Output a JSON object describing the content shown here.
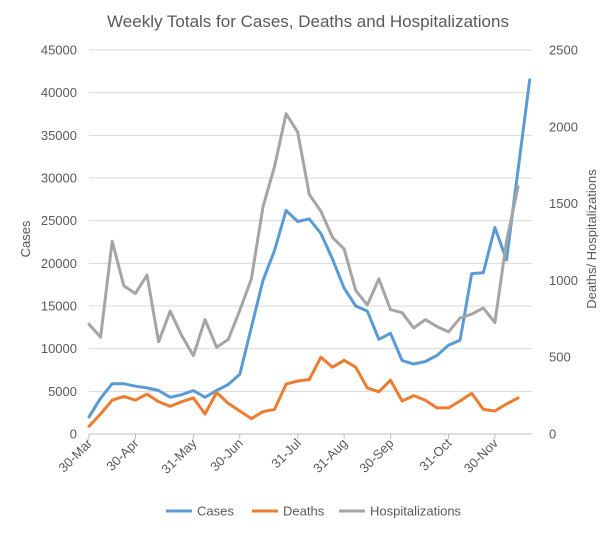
{
  "chart_data": {
    "type": "line",
    "title": "Weekly Totals for Cases, Deaths and Hospitalizations",
    "ylabel": "Cases",
    "y2label": "Deaths/ Hospitalizations",
    "xlabel": "",
    "ylim": [
      0,
      45000
    ],
    "y2lim": [
      0,
      2500
    ],
    "y_ticks": [
      0,
      5000,
      10000,
      15000,
      20000,
      25000,
      30000,
      35000,
      40000,
      45000
    ],
    "y2_ticks": [
      0,
      500,
      1000,
      1500,
      2000,
      2500
    ],
    "x_ticks": [
      {
        "week": 0,
        "label": "30-Mar"
      },
      {
        "week": 4,
        "label": "30-Apr"
      },
      {
        "week": 9,
        "label": "31-May"
      },
      {
        "week": 13,
        "label": "30-Jun"
      },
      {
        "week": 18,
        "label": "31-Jul"
      },
      {
        "week": 22,
        "label": "31-Aug"
      },
      {
        "week": 26,
        "label": "30-Sep"
      },
      {
        "week": 31,
        "label": "31-Oct"
      },
      {
        "week": 35,
        "label": "30-Nov"
      }
    ],
    "x_range": [
      0,
      38.2
    ],
    "grid": true,
    "legend": "bottom",
    "series": [
      {
        "name": "Cases",
        "axis": "left",
        "color": "#5B9BD5",
        "values": [
          2000,
          4200,
          5900,
          5900,
          5600,
          5400,
          5100,
          4300,
          4600,
          5100,
          4300,
          5100,
          5800,
          7000,
          12500,
          18000,
          21500,
          26200,
          24900,
          25200,
          23500,
          20500,
          17100,
          15000,
          14400,
          11100,
          11800,
          8600,
          8200,
          8500,
          9200,
          10400,
          11000,
          18800,
          18900,
          24200,
          20400,
          31000,
          41500
        ]
      },
      {
        "name": "Deaths",
        "axis": "right",
        "color": "#ED7D31",
        "values": [
          50,
          130,
          220,
          245,
          220,
          260,
          210,
          180,
          210,
          235,
          130,
          270,
          200,
          150,
          100,
          145,
          160,
          325,
          345,
          355,
          500,
          435,
          480,
          435,
          300,
          275,
          350,
          215,
          250,
          220,
          170,
          170,
          215,
          265,
          160,
          150,
          195,
          235
        ]
      },
      {
        "name": "Hospitalizations",
        "axis": "right",
        "color": "#A5A5A5",
        "values": [
          715,
          630,
          1255,
          965,
          915,
          1035,
          600,
          800,
          640,
          510,
          745,
          565,
          615,
          805,
          1010,
          1480,
          1740,
          2085,
          1965,
          1560,
          1450,
          1280,
          1205,
          935,
          840,
          1010,
          810,
          790,
          690,
          745,
          700,
          665,
          755,
          780,
          820,
          725,
          1255,
          1610
        ]
      }
    ]
  }
}
